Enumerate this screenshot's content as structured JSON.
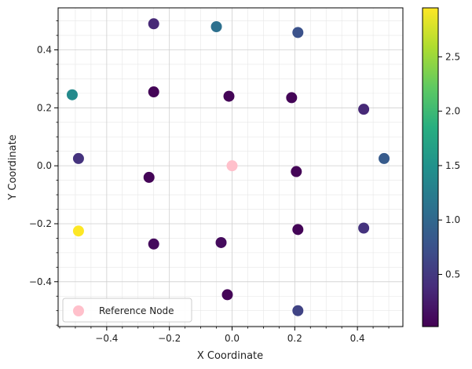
{
  "chart_data": {
    "type": "scatter",
    "xlabel": "X Coordinate",
    "ylabel": "Y Coordinate",
    "xlim": [
      -0.555,
      0.545
    ],
    "ylim": [
      -0.555,
      0.545
    ],
    "x_ticks": [
      -0.4,
      -0.2,
      0.0,
      0.2,
      0.4
    ],
    "y_ticks": [
      -0.4,
      -0.2,
      0.0,
      0.2,
      0.4
    ],
    "x_tick_labels": [
      "−0.4",
      "−0.2",
      "0.0",
      "0.2",
      "0.4"
    ],
    "y_tick_labels": [
      "−0.4",
      "−0.2",
      "0.0",
      "0.2",
      "0.4"
    ],
    "grid": true,
    "minor_grid": true,
    "colormap": "viridis",
    "colorbar": {
      "min": 0.02,
      "max": 2.95,
      "ticks": [
        0.5,
        1.0,
        1.5,
        2.0,
        2.5
      ],
      "tick_labels": [
        "0.5",
        "1.0",
        "1.5",
        "2.0",
        "2.5"
      ]
    },
    "points": [
      {
        "x": -0.25,
        "y": 0.49,
        "value": 0.35
      },
      {
        "x": -0.05,
        "y": 0.48,
        "value": 1.1
      },
      {
        "x": 0.21,
        "y": 0.46,
        "value": 0.75
      },
      {
        "x": -0.51,
        "y": 0.245,
        "value": 1.4
      },
      {
        "x": -0.25,
        "y": 0.255,
        "value": 0.05
      },
      {
        "x": -0.01,
        "y": 0.24,
        "value": 0.05
      },
      {
        "x": 0.19,
        "y": 0.235,
        "value": 0.05
      },
      {
        "x": 0.42,
        "y": 0.195,
        "value": 0.35
      },
      {
        "x": -0.49,
        "y": 0.025,
        "value": 0.45
      },
      {
        "x": 0.485,
        "y": 0.025,
        "value": 0.85
      },
      {
        "x": -0.265,
        "y": -0.04,
        "value": 0.05
      },
      {
        "x": 0.205,
        "y": -0.02,
        "value": 0.05
      },
      {
        "x": -0.49,
        "y": -0.225,
        "value": 2.95
      },
      {
        "x": 0.21,
        "y": -0.22,
        "value": 0.05
      },
      {
        "x": 0.42,
        "y": -0.215,
        "value": 0.45
      },
      {
        "x": -0.25,
        "y": -0.27,
        "value": 0.1
      },
      {
        "x": -0.035,
        "y": -0.265,
        "value": 0.1
      },
      {
        "x": -0.015,
        "y": -0.445,
        "value": 0.05
      },
      {
        "x": 0.21,
        "y": -0.5,
        "value": 0.6
      }
    ],
    "reference": {
      "x": 0.0,
      "y": 0.0,
      "name": "Reference Node",
      "color": "#ffc0cb"
    },
    "legend": {
      "placement": "lower-left",
      "entries": [
        "Reference Node"
      ]
    }
  }
}
